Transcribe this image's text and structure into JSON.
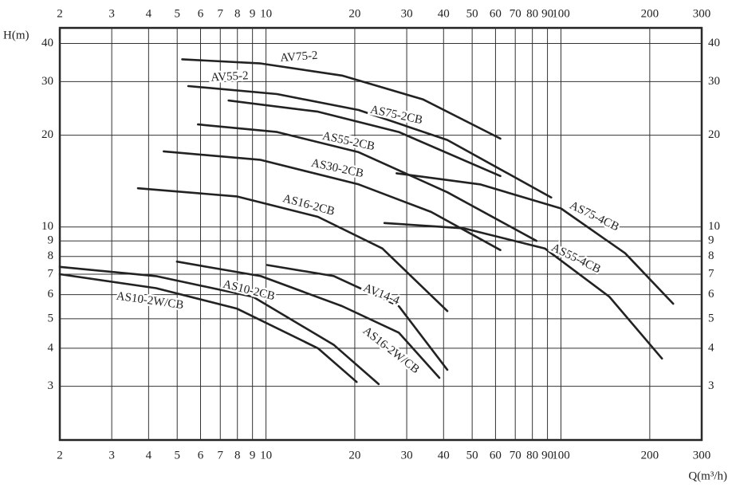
{
  "chart_data": {
    "type": "line",
    "y_label": "H(m)",
    "x_label": "Q(m³/h)",
    "xscale": "log",
    "yscale": "log",
    "grid": true,
    "xlim": [
      2,
      300
    ],
    "ylim": [
      2,
      45
    ],
    "xticks": [
      2,
      3,
      4,
      5,
      6,
      7,
      8,
      9,
      10,
      20,
      30,
      40,
      50,
      60,
      70,
      80,
      90,
      100,
      200,
      300
    ],
    "yticks": [
      3,
      4,
      5,
      6,
      7,
      8,
      9,
      10,
      20,
      30,
      40
    ],
    "series": [
      {
        "name": "AV75-2",
        "color": "#222222",
        "x": [
          5.2,
          9.6,
          18.1,
          34.1,
          62.3
        ],
        "values": [
          35.5,
          34.4,
          31.4,
          26.2,
          19.5
        ]
      },
      {
        "name": "AV55-2",
        "color": "#222222",
        "x": [
          5.45,
          10.9,
          20.6,
          41.2,
          92.7
        ],
        "values": [
          29.0,
          27.3,
          24.2,
          19.3,
          12.5
        ]
      },
      {
        "name": "AS75-2CB",
        "color": "#222222",
        "x": [
          7.47,
          15.0,
          28.2,
          62.3
        ],
        "values": [
          26.0,
          23.9,
          20.5,
          14.7
        ]
      },
      {
        "name": "AS55-2CB",
        "color": "#222222",
        "x": [
          5.88,
          10.9,
          20.6,
          41.2,
          82.6
        ],
        "values": [
          21.7,
          20.5,
          17.6,
          13.0,
          9.0
        ]
      },
      {
        "name": "AS30-2CB",
        "color": "#222222",
        "x": [
          4.5,
          9.6,
          20.6,
          36.3,
          62.3
        ],
        "values": [
          17.7,
          16.6,
          13.8,
          11.2,
          8.4
        ]
      },
      {
        "name": "AS16-2CB",
        "color": "#222222",
        "x": [
          3.68,
          7.96,
          15.0,
          24.8,
          41.2
        ],
        "values": [
          13.4,
          12.6,
          10.8,
          8.5,
          5.3
        ]
      },
      {
        "name": "AS75-4CB",
        "color": "#222222",
        "x": [
          27.7,
          53.2,
          100,
          165,
          240
        ],
        "values": [
          15.0,
          13.8,
          11.5,
          8.2,
          5.6
        ]
      },
      {
        "name": "AS55-4CB",
        "color": "#222222",
        "x": [
          25.2,
          46.8,
          88.2,
          146,
          220
        ],
        "values": [
          10.3,
          9.9,
          8.5,
          5.9,
          3.7
        ]
      },
      {
        "name": "AV14-4",
        "color": "#222222",
        "x": [
          10.1,
          17.0,
          28.2,
          41.2
        ],
        "values": [
          7.5,
          6.9,
          5.5,
          3.4
        ]
      },
      {
        "name": "AS16-2W/CB",
        "color": "#222222",
        "x": [
          4.99,
          9.6,
          18.1,
          28.2,
          38.7
        ],
        "values": [
          7.7,
          6.9,
          5.5,
          4.5,
          3.2
        ]
      },
      {
        "name": "AS10-2CB",
        "color": "#222222",
        "x": [
          2,
          4.24,
          9.04,
          17.0,
          24.1
        ],
        "values": [
          7.4,
          6.9,
          5.9,
          4.1,
          3.05
        ]
      },
      {
        "name": "AS10-2W/CB",
        "color": "#222222",
        "x": [
          2,
          4.24,
          7.96,
          15.0,
          20.3
        ],
        "values": [
          7.0,
          6.3,
          5.4,
          4.0,
          3.1
        ]
      }
    ]
  }
}
